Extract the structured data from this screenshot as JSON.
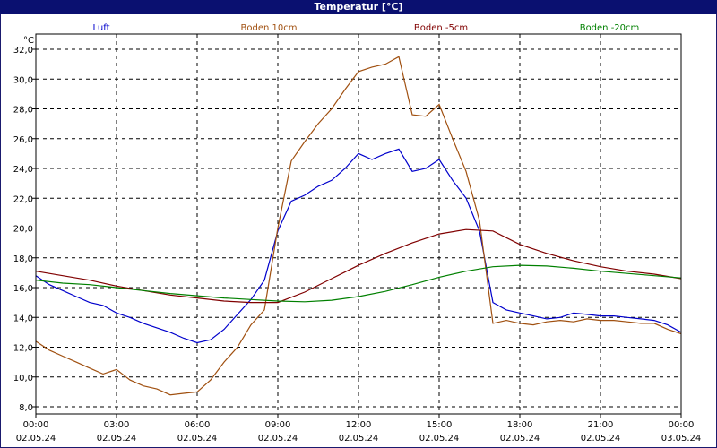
{
  "window": {
    "title": "Temperatur [°C]"
  },
  "colors": {
    "background": "#ffffff",
    "titlebar": "#0a1070",
    "grid": "#000000"
  },
  "chart_data": {
    "type": "line",
    "title": "Temperatur [°C]",
    "ylabel": "°C",
    "ylim": [
      8.0,
      32.0
    ],
    "yticks": [
      "8,0",
      "10,0",
      "12,0",
      "14,0",
      "16,0",
      "18,0",
      "20,0",
      "22,0",
      "24,0",
      "26,0",
      "28,0",
      "30,0",
      "32,0"
    ],
    "ytick_values": [
      8,
      10,
      12,
      14,
      16,
      18,
      20,
      22,
      24,
      26,
      28,
      30,
      32
    ],
    "xlim": [
      0,
      24
    ],
    "xticks": [
      {
        "time": "00:00",
        "date": "02.05.24"
      },
      {
        "time": "03:00",
        "date": "02.05.24"
      },
      {
        "time": "06:00",
        "date": "02.05.24"
      },
      {
        "time": "09:00",
        "date": "02.05.24"
      },
      {
        "time": "12:00",
        "date": "02.05.24"
      },
      {
        "time": "15:00",
        "date": "02.05.24"
      },
      {
        "time": "18:00",
        "date": "02.05.24"
      },
      {
        "time": "21:00",
        "date": "02.05.24"
      },
      {
        "time": "00:00",
        "date": "03.05.24"
      }
    ],
    "x_unit": "hours since 02.05.24 00:00",
    "grid": true,
    "series": [
      {
        "name": "Luft",
        "color": "#0000cc",
        "x": [
          0,
          0.5,
          1,
          1.5,
          2,
          2.5,
          3,
          3.5,
          4,
          4.5,
          5,
          5.5,
          6,
          6.5,
          7,
          7.5,
          8,
          8.5,
          9,
          9.5,
          10,
          10.5,
          11,
          11.5,
          12,
          12.5,
          13,
          13.5,
          14,
          14.5,
          15,
          15.5,
          16,
          16.5,
          17,
          17.5,
          18,
          18.5,
          19,
          19.5,
          20,
          20.5,
          21,
          21.5,
          22,
          22.5,
          23,
          23.5,
          24
        ],
        "values": [
          16.8,
          16.2,
          15.8,
          15.4,
          15.0,
          14.8,
          14.3,
          14.0,
          13.6,
          13.3,
          13.0,
          12.6,
          12.3,
          12.5,
          13.2,
          14.2,
          15.2,
          16.5,
          19.8,
          21.8,
          22.2,
          22.8,
          23.2,
          24.0,
          25.0,
          24.6,
          25.0,
          25.3,
          23.8,
          24.0,
          24.6,
          23.2,
          22.0,
          19.8,
          15.0,
          14.5,
          14.3,
          14.1,
          13.9,
          14.0,
          14.3,
          14.2,
          14.1,
          14.1,
          14.0,
          13.9,
          13.8,
          13.5,
          13.0
        ]
      },
      {
        "name": "Boden 10cm",
        "color": "#a05010",
        "x": [
          0,
          0.5,
          1,
          1.5,
          2,
          2.5,
          3,
          3.5,
          4,
          4.5,
          5,
          5.5,
          6,
          6.5,
          7,
          7.5,
          8,
          8.5,
          9,
          9.5,
          10,
          10.5,
          11,
          11.5,
          12,
          12.5,
          13,
          13.5,
          14,
          14.5,
          15,
          15.5,
          16,
          16.5,
          17,
          17.5,
          18,
          18.5,
          19,
          19.5,
          20,
          20.5,
          21,
          21.5,
          22,
          22.5,
          23,
          23.5,
          24
        ],
        "values": [
          12.4,
          11.8,
          11.4,
          11.0,
          10.6,
          10.2,
          10.5,
          9.8,
          9.4,
          9.2,
          8.8,
          8.9,
          9.0,
          9.8,
          11.0,
          12.0,
          13.5,
          14.5,
          20.0,
          24.5,
          25.8,
          27.0,
          28.0,
          29.3,
          30.5,
          30.8,
          31.0,
          31.5,
          27.6,
          27.5,
          28.3,
          26.0,
          23.8,
          20.5,
          13.6,
          13.8,
          13.6,
          13.5,
          13.7,
          13.8,
          13.7,
          13.9,
          13.8,
          13.8,
          13.7,
          13.6,
          13.6,
          13.2,
          12.9
        ]
      },
      {
        "name": "Boden -5cm",
        "color": "#800000",
        "x": [
          0,
          1,
          2,
          3,
          4,
          5,
          6,
          7,
          8,
          9,
          10,
          11,
          12,
          13,
          14,
          15,
          16,
          17,
          18,
          19,
          20,
          21,
          22,
          23,
          24
        ],
        "values": [
          17.1,
          16.8,
          16.5,
          16.1,
          15.8,
          15.5,
          15.3,
          15.1,
          15.0,
          15.0,
          15.7,
          16.6,
          17.5,
          18.3,
          19.0,
          19.6,
          19.9,
          19.8,
          18.9,
          18.3,
          17.8,
          17.4,
          17.1,
          16.9,
          16.6
        ]
      },
      {
        "name": "Boden -20cm",
        "color": "#008000",
        "x": [
          0,
          1,
          2,
          3,
          4,
          5,
          6,
          7,
          8,
          9,
          10,
          11,
          12,
          13,
          14,
          15,
          16,
          17,
          18,
          19,
          20,
          21,
          22,
          23,
          24
        ],
        "values": [
          16.5,
          16.3,
          16.2,
          16.0,
          15.8,
          15.6,
          15.45,
          15.3,
          15.2,
          15.1,
          15.05,
          15.15,
          15.4,
          15.75,
          16.2,
          16.7,
          17.1,
          17.4,
          17.5,
          17.45,
          17.3,
          17.1,
          16.95,
          16.8,
          16.65
        ]
      }
    ]
  }
}
